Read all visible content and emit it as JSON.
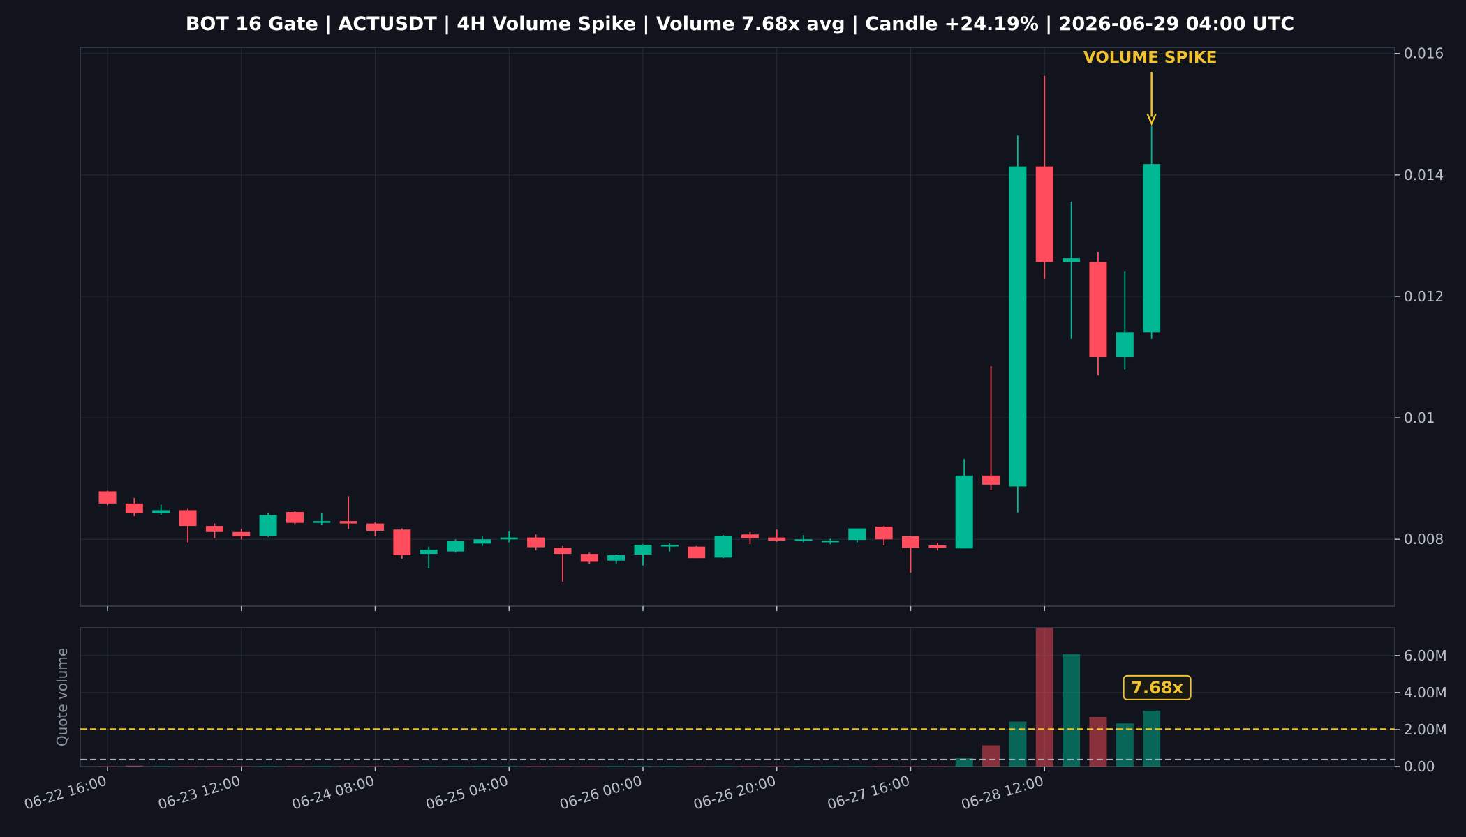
{
  "colors": {
    "background": "#11141c",
    "bullish": "#00b894",
    "bearish": "#ff4d5e",
    "accent": "#f2c12e",
    "grid": "#262b36",
    "frame": "#3a404c",
    "avg_line": "#aab0bb"
  },
  "chart_data": {
    "type": "candlestick",
    "title": "BOT 16 Gate | ACTUSDT | 4H Volume Spike | Volume 7.68x avg | Candle +24.19% | 2026-06-29 04:00 UTC",
    "price_axis": {
      "ylim": [
        0.0069,
        0.0161
      ],
      "ticks": [
        0.008,
        0.01,
        0.012,
        0.014,
        0.016
      ],
      "tick_labels": [
        "0.008",
        "0.01",
        "0.012",
        "0.014",
        "0.016"
      ]
    },
    "time_axis": {
      "first_candle": "06-22 16:00",
      "interval_hours": 4,
      "tick_indices": [
        0,
        5,
        10,
        15,
        20,
        25,
        30,
        35
      ],
      "tick_labels": [
        "06-22 16:00",
        "06-23 12:00",
        "06-24 08:00",
        "06-25 04:00",
        "06-26 00:00",
        "06-26 20:00",
        "06-27 16:00",
        "06-28 12:00"
      ]
    },
    "candles": [
      {
        "o": 0.00879,
        "h": 0.0088,
        "l": 0.00856,
        "c": 0.00859
      },
      {
        "o": 0.00859,
        "h": 0.00868,
        "l": 0.00838,
        "c": 0.00843
      },
      {
        "o": 0.00843,
        "h": 0.00857,
        "l": 0.0084,
        "c": 0.00848
      },
      {
        "o": 0.00848,
        "h": 0.0085,
        "l": 0.00795,
        "c": 0.00822
      },
      {
        "o": 0.00822,
        "h": 0.00826,
        "l": 0.00802,
        "c": 0.00812
      },
      {
        "o": 0.00812,
        "h": 0.00817,
        "l": 0.008,
        "c": 0.00805
      },
      {
        "o": 0.00806,
        "h": 0.00843,
        "l": 0.00804,
        "c": 0.0084
      },
      {
        "o": 0.00845,
        "h": 0.00846,
        "l": 0.00825,
        "c": 0.00827
      },
      {
        "o": 0.00827,
        "h": 0.00843,
        "l": 0.00824,
        "c": 0.0083
      },
      {
        "o": 0.0083,
        "h": 0.00871,
        "l": 0.00817,
        "c": 0.00826
      },
      {
        "o": 0.00826,
        "h": 0.00828,
        "l": 0.00805,
        "c": 0.00814
      },
      {
        "o": 0.00816,
        "h": 0.00818,
        "l": 0.00768,
        "c": 0.00774
      },
      {
        "o": 0.00776,
        "h": 0.00788,
        "l": 0.00752,
        "c": 0.00783
      },
      {
        "o": 0.0078,
        "h": 0.008,
        "l": 0.00778,
        "c": 0.00797
      },
      {
        "o": 0.00793,
        "h": 0.00806,
        "l": 0.00789,
        "c": 0.008
      },
      {
        "o": 0.008,
        "h": 0.00813,
        "l": 0.00795,
        "c": 0.00803
      },
      {
        "o": 0.00803,
        "h": 0.00808,
        "l": 0.00782,
        "c": 0.00787
      },
      {
        "o": 0.00786,
        "h": 0.00789,
        "l": 0.0073,
        "c": 0.00776
      },
      {
        "o": 0.00776,
        "h": 0.00778,
        "l": 0.0076,
        "c": 0.00763
      },
      {
        "o": 0.00765,
        "h": 0.00775,
        "l": 0.0076,
        "c": 0.00774
      },
      {
        "o": 0.00775,
        "h": 0.00792,
        "l": 0.00757,
        "c": 0.00791
      },
      {
        "o": 0.0079,
        "h": 0.00793,
        "l": 0.0078,
        "c": 0.00791
      },
      {
        "o": 0.00788,
        "h": 0.00789,
        "l": 0.00769,
        "c": 0.00769
      },
      {
        "o": 0.0077,
        "h": 0.00807,
        "l": 0.00769,
        "c": 0.00806
      },
      {
        "o": 0.00808,
        "h": 0.00812,
        "l": 0.00792,
        "c": 0.00802
      },
      {
        "o": 0.00803,
        "h": 0.00816,
        "l": 0.00796,
        "c": 0.00798
      },
      {
        "o": 0.008,
        "h": 0.00807,
        "l": 0.00795,
        "c": 0.008
      },
      {
        "o": 0.00796,
        "h": 0.00801,
        "l": 0.00792,
        "c": 0.00798
      },
      {
        "o": 0.00799,
        "h": 0.00818,
        "l": 0.00795,
        "c": 0.00818
      },
      {
        "o": 0.00821,
        "h": 0.00822,
        "l": 0.0079,
        "c": 0.008
      },
      {
        "o": 0.00805,
        "h": 0.00806,
        "l": 0.00745,
        "c": 0.00786
      },
      {
        "o": 0.0079,
        "h": 0.00794,
        "l": 0.00782,
        "c": 0.00786
      },
      {
        "o": 0.00785,
        "h": 0.00932,
        "l": 0.00785,
        "c": 0.00905
      },
      {
        "o": 0.00905,
        "h": 0.01085,
        "l": 0.00881,
        "c": 0.0089
      },
      {
        "o": 0.00887,
        "h": 0.01465,
        "l": 0.00844,
        "c": 0.01414
      },
      {
        "o": 0.01414,
        "h": 0.01563,
        "l": 0.01229,
        "c": 0.01257
      },
      {
        "o": 0.01257,
        "h": 0.01356,
        "l": 0.0113,
        "c": 0.01263
      },
      {
        "o": 0.01257,
        "h": 0.01273,
        "l": 0.0107,
        "c": 0.011
      },
      {
        "o": 0.011,
        "h": 0.01241,
        "l": 0.0108,
        "c": 0.01141
      },
      {
        "o": 0.01141,
        "h": 0.01481,
        "l": 0.0113,
        "c": 0.01418
      }
    ],
    "volume_axis": {
      "ylabel": "Quote volume",
      "ylim": [
        0,
        7.5
      ],
      "ticks": [
        0,
        2,
        4,
        6
      ],
      "tick_labels": [
        "0.00",
        "2.00M",
        "4.00M",
        "6.00M"
      ],
      "unit": "M"
    },
    "volumes": [
      0.01,
      0.05,
      0.01,
      0.01,
      0.01,
      0.01,
      0.01,
      0.01,
      0.01,
      0.01,
      0.01,
      0.01,
      0.01,
      0.01,
      0.01,
      0.01,
      0.01,
      0.01,
      0.01,
      0.01,
      0.01,
      0.01,
      0.01,
      0.01,
      0.01,
      0.01,
      0.01,
      0.01,
      0.01,
      0.01,
      0.01,
      0.01,
      0.45,
      1.15,
      2.43,
      7.49,
      6.07,
      2.68,
      2.33,
      3.02
    ],
    "volume_reference_lines": [
      {
        "value": 2.02,
        "style": "dashed",
        "color": "#f2c12e"
      },
      {
        "value": 0.39,
        "style": "dashed",
        "color": "#aab0bb"
      }
    ],
    "annotations": {
      "spike_label": "VOLUME SPIKE",
      "spike_candle_index": 39,
      "ratio_badge": "7.68x"
    },
    "grid": true
  }
}
